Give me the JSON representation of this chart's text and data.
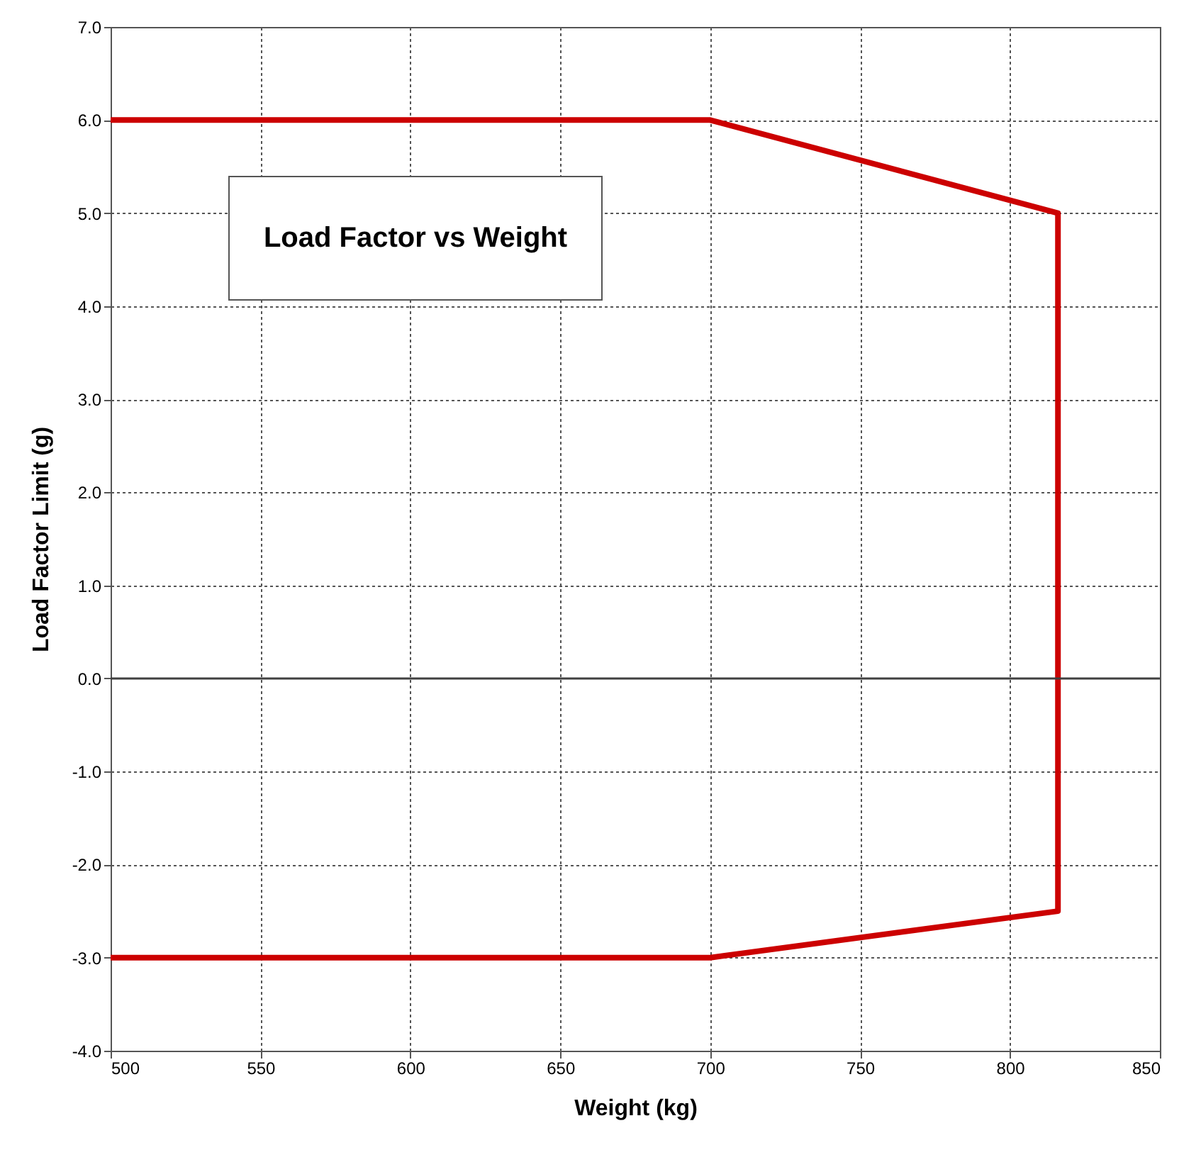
{
  "chart_data": {
    "type": "line",
    "title": "Load Factor vs Weight",
    "xlabel": "Weight (kg)",
    "ylabel": "Load Factor Limit (g)",
    "x": [
      500,
      700,
      816,
      816,
      700,
      500
    ],
    "series": [
      {
        "color": "#cc0000",
        "values": [
          6.0,
          6.0,
          5.0,
          -2.5,
          -3.0,
          -3.0
        ]
      }
    ],
    "xlim": [
      500,
      850
    ],
    "xticks": [
      500,
      550,
      600,
      650,
      700,
      750,
      800,
      850
    ],
    "ylim": [
      -4,
      7
    ],
    "yticks": [
      {
        "value": -4,
        "label": "-4.0"
      },
      {
        "value": -3,
        "label": "-3.0"
      },
      {
        "value": -2,
        "label": "-2.0"
      },
      {
        "value": -1,
        "label": "-1.0"
      },
      {
        "value": 0,
        "label": "0.0"
      },
      {
        "value": 1,
        "label": "1.0"
      },
      {
        "value": 2,
        "label": "2.0"
      },
      {
        "value": 3,
        "label": "3.0"
      },
      {
        "value": 4,
        "label": "4.0"
      },
      {
        "value": 5,
        "label": "5.0"
      },
      {
        "value": 6,
        "label": "6.0"
      },
      {
        "value": 7,
        "label": "7.0"
      }
    ],
    "ref_lines": [
      {
        "axis": "y",
        "value": 0,
        "color": "#404040"
      }
    ],
    "grid": true,
    "legend": false,
    "marker": "none",
    "line_style": "solid"
  }
}
